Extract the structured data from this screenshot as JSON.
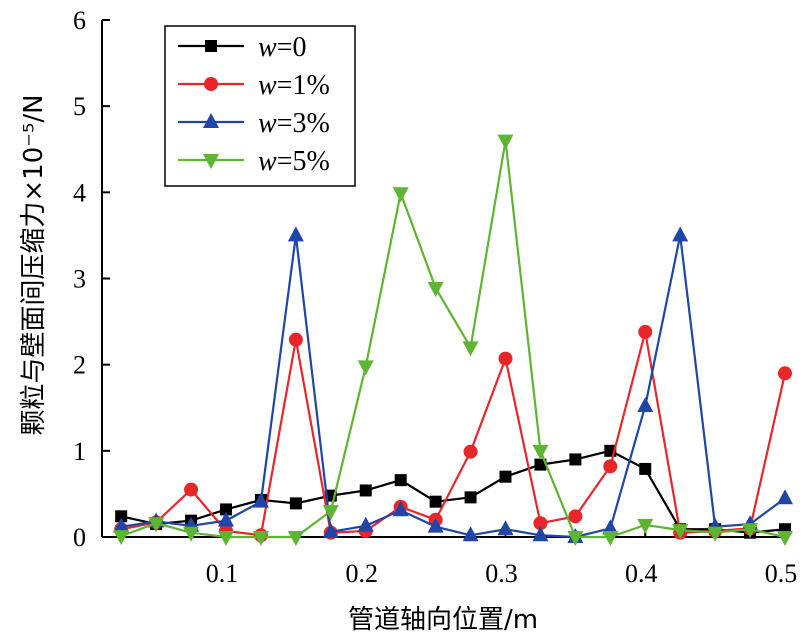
{
  "chart_data": {
    "type": "line",
    "xlabel": "管道轴向位置/m",
    "ylabel": "颗粒与壁面间压缩力×10⁻⁵/N",
    "xlim": [
      0.025,
      0.5
    ],
    "ylim": [
      0,
      6
    ],
    "x_ticks": [
      0.1,
      0.2,
      0.3,
      0.4,
      0.5
    ],
    "x_tick_labels": [
      "0.1",
      "0.2",
      "0.3",
      "0.4",
      "0.5"
    ],
    "y_ticks": [
      0,
      1,
      2,
      3,
      4,
      5,
      6
    ],
    "y_tick_labels": [
      "0",
      "1",
      "2",
      "3",
      "4",
      "5",
      "6"
    ],
    "grid": false,
    "legend_position": "top-left",
    "x": [
      0.025,
      0.05,
      0.075,
      0.1,
      0.125,
      0.15,
      0.175,
      0.2,
      0.225,
      0.25,
      0.275,
      0.3,
      0.325,
      0.35,
      0.375,
      0.4,
      0.425,
      0.45,
      0.475,
      0.5
    ],
    "series": [
      {
        "name": "w=0",
        "var": "w",
        "rest": "=0",
        "color": "#000000",
        "marker": "square",
        "values": [
          0.24,
          0.15,
          0.19,
          0.32,
          0.43,
          0.39,
          0.48,
          0.54,
          0.66,
          0.41,
          0.46,
          0.7,
          0.84,
          0.9,
          1.0,
          0.79,
          0.09,
          0.09,
          0.05,
          0.09
        ]
      },
      {
        "name": "w=1%",
        "var": "w",
        "rest": "=1%",
        "color": "#e8262a",
        "marker": "circle",
        "values": [
          0.09,
          0.17,
          0.55,
          0.07,
          0.02,
          2.29,
          0.05,
          0.07,
          0.35,
          0.2,
          0.99,
          2.07,
          0.16,
          0.24,
          0.82,
          2.38,
          0.05,
          0.07,
          0.1,
          1.9
        ]
      },
      {
        "name": "w=3%",
        "var": "w",
        "rest": "=3%",
        "color": "#1f46a6",
        "marker": "triangle-up",
        "values": [
          0.12,
          0.18,
          0.13,
          0.19,
          0.41,
          3.5,
          0.06,
          0.13,
          0.31,
          0.12,
          0.02,
          0.09,
          0.02,
          0.0,
          0.1,
          1.52,
          3.5,
          0.12,
          0.15,
          0.45
        ]
      },
      {
        "name": "w=5%",
        "var": "w",
        "rest": "=5%",
        "color": "#5db531",
        "marker": "triangle-down",
        "values": [
          0.01,
          0.16,
          0.05,
          0.0,
          0.0,
          0.0,
          0.3,
          1.98,
          3.99,
          2.89,
          2.2,
          4.6,
          1.0,
          0.0,
          0.0,
          0.14,
          0.08,
          0.05,
          0.09,
          0.0
        ]
      }
    ]
  }
}
